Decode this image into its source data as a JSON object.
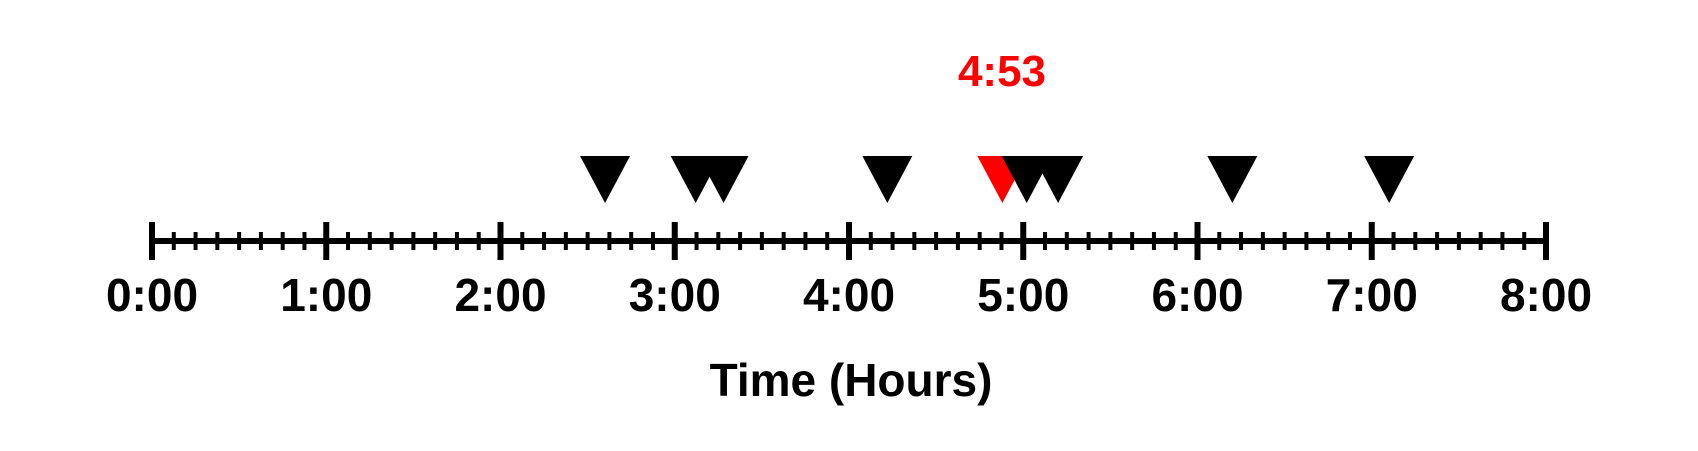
{
  "chart_data": {
    "type": "timeline",
    "xlabel": "Time (Hours)",
    "xlim": [
      0,
      8
    ],
    "tick_labels": [
      "0:00",
      "1:00",
      "2:00",
      "3:00",
      "4:00",
      "5:00",
      "6:00",
      "7:00",
      "8:00"
    ],
    "major_tick_hours": [
      0,
      1,
      2,
      3,
      4,
      5,
      6,
      7,
      8
    ],
    "minor_ticks_per_hour": 7,
    "events_hours": [
      2.6,
      3.12,
      3.28,
      4.22,
      5.02,
      5.2,
      6.2,
      7.1
    ],
    "highlight": {
      "label": "4:53",
      "hours": 4.88,
      "color": "#ff0000"
    },
    "colors": {
      "marker": "#000000",
      "axis": "#000000",
      "highlight": "#ff0000"
    }
  }
}
